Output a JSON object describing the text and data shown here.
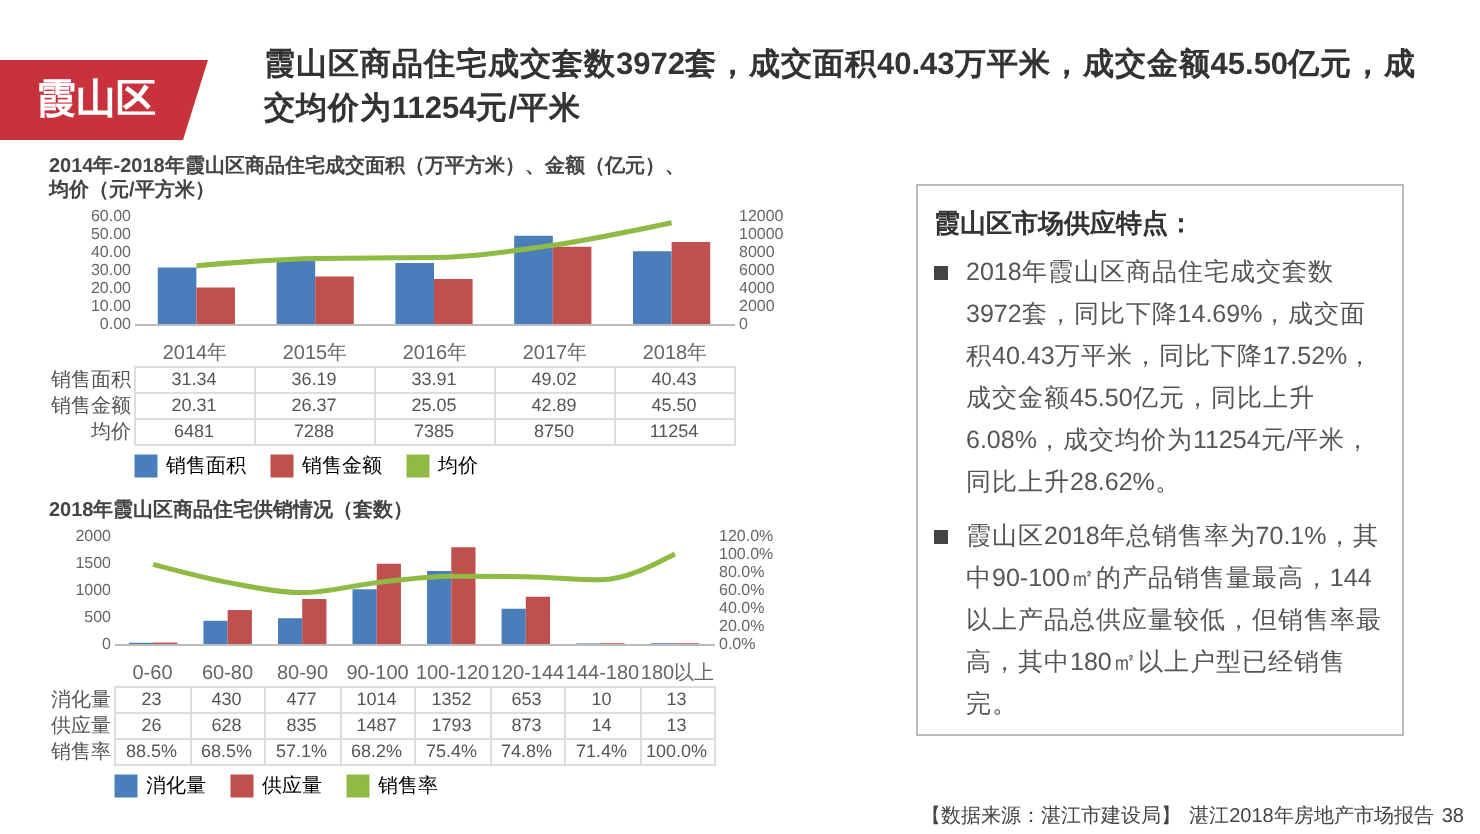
{
  "chart_data": [
    {
      "type": "other",
      "title": "霞山区",
      "subtitle": "霞山区商品住宅成交套数3972套，成交面积40.43万平米，成交金额45.50亿元，成交均价为11254元/平米",
      "annotations": [
        "【数据来源：湛江市建设局】",
        "湛江2018年房地产市场报告",
        "38"
      ]
    },
    {
      "type": "bar",
      "title": "2014年-2018年霞山区商品住宅成交面积（万平方米）、金额（亿元）、均价（元/平方米）",
      "categories": [
        "2014年",
        "2015年",
        "2016年",
        "2017年",
        "2018年"
      ],
      "ylim": [
        0,
        60
      ],
      "yticks": [
        {
          "value": 0,
          "label": "0.00"
        },
        {
          "value": 10,
          "label": "10.00"
        },
        {
          "value": 20,
          "label": "20.00"
        },
        {
          "value": 30,
          "label": "30.00"
        },
        {
          "value": 40,
          "label": "40.00"
        },
        {
          "value": 50,
          "label": "50.00"
        },
        {
          "value": 60,
          "label": "60.00"
        }
      ],
      "y2lim": [
        0,
        12000
      ],
      "y2ticks": [
        0,
        2000,
        4000,
        6000,
        8000,
        10000,
        12000
      ],
      "legend": "bottom",
      "series": [
        {
          "name": "销售面积",
          "color": "#4a7ebb",
          "values": [
            31.34,
            36.19,
            33.91,
            49.02,
            40.43
          ],
          "value_labels": [
            "31.34",
            "36.19",
            "33.91",
            "49.02",
            "40.43"
          ]
        },
        {
          "name": "销售金额",
          "color": "#c0504d",
          "values": [
            20.31,
            26.37,
            25.05,
            42.89,
            45.5
          ],
          "value_labels": [
            "20.31",
            "26.37",
            "25.05",
            "42.89",
            "45.50"
          ]
        },
        {
          "name": "均价",
          "type": "line",
          "axis": "y2",
          "color": "#8fba44",
          "values": [
            6481,
            7288,
            7385,
            8750,
            11254
          ],
          "value_labels": [
            "6481",
            "7288",
            "7385",
            "8750",
            "11254"
          ]
        }
      ]
    },
    {
      "type": "bar",
      "title": "2018年霞山区商品住宅供销情况（套数）",
      "categories": [
        "0-60",
        "60-80",
        "80-90",
        "90-100",
        "100-120",
        "120-144",
        "144-180",
        "180以上"
      ],
      "ylim": [
        0,
        2000
      ],
      "yticks": [
        0,
        500,
        1000,
        1500,
        2000
      ],
      "y2lim": [
        0,
        120
      ],
      "y2ticks": [
        {
          "value": 0,
          "label": "0.0%"
        },
        {
          "value": 20,
          "label": "20.0%"
        },
        {
          "value": 40,
          "label": "40.0%"
        },
        {
          "value": 60,
          "label": "60.0%"
        },
        {
          "value": 80,
          "label": "80.0%"
        },
        {
          "value": 100,
          "label": "100.0%"
        },
        {
          "value": 120,
          "label": "120.0%"
        }
      ],
      "legend": "bottom",
      "series": [
        {
          "name": "消化量",
          "color": "#4a7ebb",
          "values": [
            23,
            430,
            477,
            1014,
            1352,
            653,
            10,
            13
          ],
          "value_labels": [
            "23",
            "430",
            "477",
            "1014",
            "1352",
            "653",
            "10",
            "13"
          ]
        },
        {
          "name": "供应量",
          "color": "#c0504d",
          "values": [
            26,
            628,
            835,
            1487,
            1793,
            873,
            14,
            13
          ],
          "value_labels": [
            "26",
            "628",
            "835",
            "1487",
            "1793",
            "873",
            "14",
            "13"
          ]
        },
        {
          "name": "销售率",
          "type": "line",
          "axis": "y2",
          "color": "#8fba44",
          "values": [
            88.5,
            68.5,
            57.1,
            68.2,
            75.4,
            74.8,
            71.4,
            100
          ],
          "value_labels": [
            "88.5%",
            "68.5%",
            "57.1%",
            "68.2%",
            "75.4%",
            "74.8%",
            "71.4%",
            "100.0%"
          ]
        }
      ]
    },
    {
      "type": "other",
      "title": "霞山区市场供应特点：",
      "annotations": [
        "2018年霞山区商品住宅成交套数3972套，同比下降14.69%，成交面积40.43万平米，同比下降17.52%，成交金额45.50亿元，同比上升6.08%，成交均价为11254元/平米，同比上升28.62%。",
        "霞山区2018年总销售率为70.1%，其中90-100㎡的产品销售量最高，144以上产品总供应量较低，但销售率最高，其中180㎡以上户型已经销售完。"
      ]
    }
  ]
}
